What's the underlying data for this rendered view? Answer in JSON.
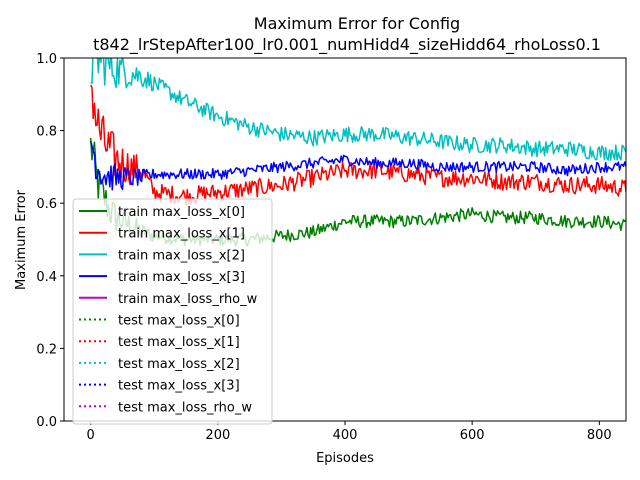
{
  "chart_data": {
    "type": "line",
    "title": "Maximum Error for Config",
    "subtitle": "t842_lrStepAfter100_lr0.001_numHidd4_sizeHidd64_rhoLoss0.1",
    "xlabel": "Episodes",
    "ylabel": "Maximum Error",
    "xlim": [
      -42,
      842
    ],
    "ylim": [
      0.0,
      1.0
    ],
    "x_ticks": [
      "0",
      "200",
      "400",
      "600",
      "800"
    ],
    "y_ticks": [
      "0.0",
      "0.2",
      "0.4",
      "0.6",
      "0.8",
      "1.0"
    ],
    "grid": false,
    "legend_position": "lower-left",
    "series": [
      {
        "name": "train max_loss_x[0]",
        "color": "#008000",
        "style": "solid",
        "x": [
          0,
          5,
          10,
          20,
          30,
          40,
          60,
          80,
          100,
          150,
          200,
          250,
          300,
          350,
          400,
          450,
          500,
          550,
          600,
          650,
          700,
          750,
          800,
          842
        ],
        "y": [
          0.76,
          0.72,
          0.66,
          0.62,
          0.58,
          0.56,
          0.54,
          0.52,
          0.51,
          0.5,
          0.5,
          0.5,
          0.51,
          0.52,
          0.55,
          0.55,
          0.55,
          0.56,
          0.57,
          0.56,
          0.56,
          0.55,
          0.55,
          0.54
        ]
      },
      {
        "name": "train max_loss_x[1]",
        "color": "#ff0000",
        "style": "solid",
        "x": [
          0,
          5,
          10,
          20,
          40,
          60,
          80,
          100,
          150,
          200,
          250,
          300,
          350,
          400,
          450,
          500,
          550,
          600,
          650,
          700,
          750,
          800,
          842
        ],
        "y": [
          0.95,
          0.88,
          0.82,
          0.77,
          0.72,
          0.7,
          0.69,
          0.63,
          0.62,
          0.63,
          0.64,
          0.65,
          0.67,
          0.69,
          0.69,
          0.68,
          0.67,
          0.67,
          0.66,
          0.66,
          0.65,
          0.65,
          0.64
        ]
      },
      {
        "name": "train max_loss_x[2]",
        "color": "#00bfbf",
        "style": "solid",
        "x": [
          0,
          10,
          20,
          40,
          60,
          80,
          100,
          150,
          200,
          250,
          300,
          350,
          400,
          450,
          500,
          550,
          600,
          650,
          700,
          750,
          800,
          842
        ],
        "y": [
          0.98,
          1.0,
          0.99,
          0.97,
          0.96,
          0.95,
          0.93,
          0.88,
          0.84,
          0.81,
          0.79,
          0.78,
          0.79,
          0.79,
          0.78,
          0.77,
          0.76,
          0.76,
          0.75,
          0.75,
          0.74,
          0.74
        ]
      },
      {
        "name": "train max_loss_x[3]",
        "color": "#0000ff",
        "style": "solid",
        "x": [
          0,
          5,
          10,
          20,
          40,
          60,
          80,
          100,
          150,
          200,
          250,
          300,
          350,
          400,
          450,
          500,
          550,
          600,
          650,
          700,
          750,
          800,
          842
        ],
        "y": [
          0.78,
          0.74,
          0.7,
          0.68,
          0.67,
          0.67,
          0.67,
          0.68,
          0.68,
          0.68,
          0.69,
          0.7,
          0.71,
          0.72,
          0.71,
          0.71,
          0.7,
          0.7,
          0.7,
          0.7,
          0.69,
          0.7,
          0.7
        ]
      },
      {
        "name": "train max_loss_rho_w",
        "color": "#bf00bf",
        "style": "solid",
        "x": [],
        "y": []
      },
      {
        "name": "test max_loss_x[0]",
        "color": "#008000",
        "style": "dotted",
        "x": [],
        "y": []
      },
      {
        "name": "test max_loss_x[1]",
        "color": "#ff0000",
        "style": "dotted",
        "x": [],
        "y": []
      },
      {
        "name": "test max_loss_x[2]",
        "color": "#00bfbf",
        "style": "dotted",
        "x": [],
        "y": []
      },
      {
        "name": "test max_loss_x[3]",
        "color": "#0000ff",
        "style": "dotted",
        "x": [],
        "y": []
      },
      {
        "name": "test max_loss_rho_w",
        "color": "#bf00bf",
        "style": "dotted",
        "x": [],
        "y": []
      }
    ]
  }
}
